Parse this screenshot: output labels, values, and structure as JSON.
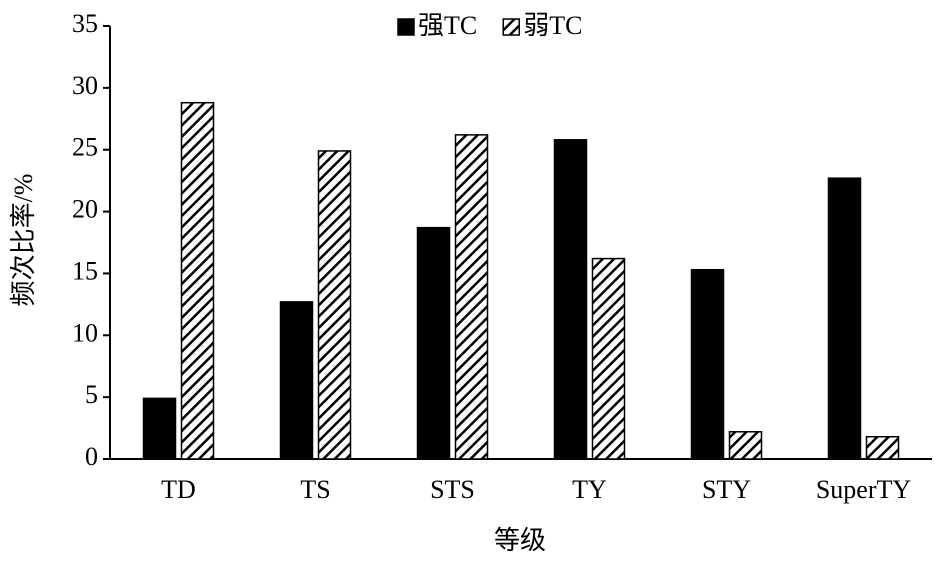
{
  "chart_data": {
    "type": "bar",
    "x_label": "等级",
    "y_label": "频次比率/%",
    "categories": [
      "TD",
      "TS",
      "STS",
      "TY",
      "STY",
      "SuperTY"
    ],
    "series": [
      {
        "name": "强TC",
        "color": "#000000",
        "hatch": false,
        "values": [
          4.9,
          12.7,
          18.7,
          25.8,
          15.3,
          22.7
        ]
      },
      {
        "name": "弱TC",
        "color": "#000000",
        "hatch": true,
        "values": [
          28.8,
          24.9,
          26.2,
          16.2,
          2.2,
          1.8
        ]
      }
    ],
    "ylim": [
      0,
      35
    ],
    "yticks": [
      0,
      5,
      10,
      15,
      20,
      25,
      30,
      35
    ],
    "grid": false
  }
}
